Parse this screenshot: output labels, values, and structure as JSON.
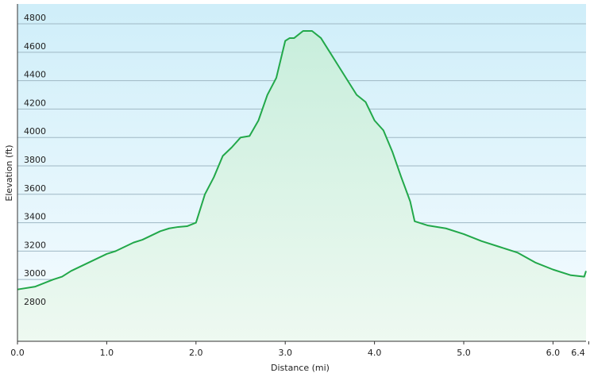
{
  "chart_data": {
    "type": "area",
    "xlabel": "Distance  (mi)",
    "ylabel": "Elevation (ft)",
    "x": [
      0.0,
      0.2,
      0.4,
      0.5,
      0.6,
      0.7,
      0.8,
      0.9,
      1.0,
      1.1,
      1.2,
      1.3,
      1.4,
      1.5,
      1.6,
      1.7,
      1.8,
      1.9,
      2.0,
      2.05,
      2.1,
      2.2,
      2.3,
      2.4,
      2.5,
      2.6,
      2.7,
      2.8,
      2.9,
      3.0,
      3.05,
      3.1,
      3.2,
      3.3,
      3.4,
      3.5,
      3.6,
      3.7,
      3.8,
      3.9,
      4.0,
      4.1,
      4.2,
      4.3,
      4.4,
      4.45,
      4.6,
      4.8,
      5.0,
      5.2,
      5.4,
      5.6,
      5.8,
      6.0,
      6.2,
      6.35,
      6.37
    ],
    "values": [
      2930,
      2950,
      3000,
      3020,
      3060,
      3090,
      3120,
      3150,
      3180,
      3200,
      3230,
      3260,
      3280,
      3310,
      3340,
      3360,
      3370,
      3375,
      3400,
      3500,
      3600,
      3720,
      3870,
      3930,
      4000,
      4010,
      4120,
      4300,
      4420,
      4680,
      4700,
      4700,
      4750,
      4750,
      4700,
      4600,
      4500,
      4400,
      4300,
      4250,
      4120,
      4050,
      3900,
      3720,
      3550,
      3410,
      3380,
      3360,
      3320,
      3270,
      3230,
      3190,
      3120,
      3070,
      3030,
      3020,
      3060
    ],
    "color": "#22a84a",
    "xlim": [
      0,
      6.37
    ],
    "ylim": [
      2565,
      4940
    ],
    "xticks": [
      {
        "value": 0,
        "label": "0.0"
      },
      {
        "value": 1,
        "label": "1.0"
      },
      {
        "value": 2,
        "label": "2.0"
      },
      {
        "value": 3,
        "label": "3.0"
      },
      {
        "value": 4,
        "label": "4.0"
      },
      {
        "value": 5,
        "label": "5.0"
      },
      {
        "value": 6,
        "label": "6.0"
      },
      {
        "value": 6.4,
        "label": "6.4"
      }
    ],
    "yticks": [
      2800,
      3000,
      3200,
      3400,
      3600,
      3800,
      4000,
      4200,
      4400,
      4600,
      4800
    ],
    "grid": true
  }
}
